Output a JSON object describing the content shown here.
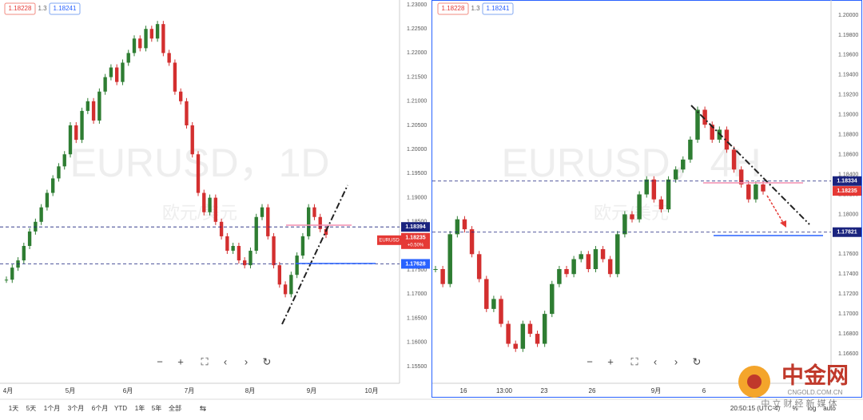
{
  "left": {
    "bid": "1.18228",
    "spread": "1.3",
    "ask": "1.18241",
    "watermark": "EURUSD，1D",
    "watermark_sub": "欧元/美元",
    "ylim": [
      1.23,
      1.155
    ],
    "yticks": [
      {
        "value": 1.23,
        "label": "1.23000"
      },
      {
        "value": 1.225,
        "label": "1.22500"
      },
      {
        "value": 1.22,
        "label": "1.22000"
      },
      {
        "value": 1.215,
        "label": "1.21500"
      },
      {
        "value": 1.21,
        "label": "1.21000"
      },
      {
        "value": 1.205,
        "label": "1.20500"
      },
      {
        "value": 1.2,
        "label": "1.20000"
      },
      {
        "value": 1.195,
        "label": "1.19500"
      },
      {
        "value": 1.19,
        "label": "1.19000"
      },
      {
        "value": 1.185,
        "label": "1.18500"
      },
      {
        "value": 1.18,
        "label": "1.18000"
      },
      {
        "value": 1.175,
        "label": "1.17500"
      },
      {
        "value": 1.17,
        "label": "1.17000"
      },
      {
        "value": 1.165,
        "label": "1.16500"
      },
      {
        "value": 1.16,
        "label": "1.16000"
      },
      {
        "value": 1.155,
        "label": "1.15500"
      }
    ],
    "xticks": [
      "4月",
      "5月",
      "6月",
      "7月",
      "8月",
      "9月",
      "10月"
    ],
    "closes": [
      1.173,
      1.1755,
      1.177,
      1.18,
      1.183,
      1.185,
      1.188,
      1.191,
      1.194,
      1.1965,
      1.199,
      1.205,
      1.202,
      1.208,
      1.21,
      1.206,
      1.212,
      1.215,
      1.217,
      1.214,
      1.218,
      1.22,
      1.223,
      1.221,
      1.225,
      1.223,
      1.226,
      1.22,
      1.218,
      1.212,
      1.21,
      1.205,
      1.199,
      1.191,
      1.187,
      1.19,
      1.185,
      1.182,
      1.179,
      1.18,
      1.177,
      1.176,
      1.179,
      1.186,
      1.188,
      1.182,
      1.176,
      1.172,
      1.17,
      1.174,
      1.178,
      1.182,
      1.188,
      1.186,
      1.1835,
      1.1823
    ],
    "levels": [
      1.18394,
      1.17628
    ],
    "last": 1.18235,
    "symbol": "EURUSD",
    "change": "+0.50%"
  },
  "right": {
    "bid": "1.18228",
    "spread": "1.3",
    "ask": "1.18241",
    "watermark": "EURUSD，4H",
    "watermark_sub": "欧元/美元",
    "ylim": [
      1.2,
      1.166
    ],
    "yticks": [
      {
        "value": 1.2,
        "label": "1.20000"
      },
      {
        "value": 1.198,
        "label": "1.19800"
      },
      {
        "value": 1.196,
        "label": "1.19600"
      },
      {
        "value": 1.194,
        "label": "1.19400"
      },
      {
        "value": 1.192,
        "label": "1.19200"
      },
      {
        "value": 1.19,
        "label": "1.19000"
      },
      {
        "value": 1.188,
        "label": "1.18800"
      },
      {
        "value": 1.186,
        "label": "1.18600"
      },
      {
        "value": 1.184,
        "label": "1.18400"
      },
      {
        "value": 1.182,
        "label": "1.18200"
      },
      {
        "value": 1.18,
        "label": "1.18000"
      },
      {
        "value": 1.178,
        "label": "1.17800"
      },
      {
        "value": 1.176,
        "label": "1.17600"
      },
      {
        "value": 1.174,
        "label": "1.17400"
      },
      {
        "value": 1.172,
        "label": "1.17200"
      },
      {
        "value": 1.17,
        "label": "1.17000"
      },
      {
        "value": 1.168,
        "label": "1.16800"
      },
      {
        "value": 1.166,
        "label": "1.16600"
      }
    ],
    "xticks": [
      "16",
      "13:00",
      "23",
      "26",
      "9月",
      "6"
    ],
    "closes": [
      1.1745,
      1.173,
      1.178,
      1.1795,
      1.1785,
      1.176,
      1.1735,
      1.1705,
      1.1715,
      1.169,
      1.167,
      1.1665,
      1.169,
      1.168,
      1.167,
      1.17,
      1.173,
      1.1745,
      1.174,
      1.1755,
      1.176,
      1.1745,
      1.1765,
      1.1755,
      1.174,
      1.178,
      1.18,
      1.1795,
      1.182,
      1.1835,
      1.1815,
      1.1805,
      1.1835,
      1.1845,
      1.1855,
      1.1875,
      1.1905,
      1.189,
      1.1875,
      1.1885,
      1.1865,
      1.1845,
      1.183,
      1.1815,
      1.183,
      1.1823
    ],
    "levels": [
      1.18334,
      1.17821
    ],
    "last": 1.18235
  },
  "controls": [
    "−",
    "+",
    "⛶",
    "‹",
    "›",
    "↻"
  ],
  "toolbar": {
    "ranges": [
      "1天",
      "5天",
      "1个月",
      "3个月",
      "6个月",
      "YTD",
      "1年",
      "5年",
      "全部"
    ],
    "compare": "⇆",
    "time": "20:50:15 (UTC-4)",
    "options": [
      "%",
      "log",
      "auto"
    ]
  },
  "logo": {
    "brand": "中金网",
    "url": "CNGOLD.COM.CN",
    "tagline": "中 立 财 经 新 媒 体"
  }
}
